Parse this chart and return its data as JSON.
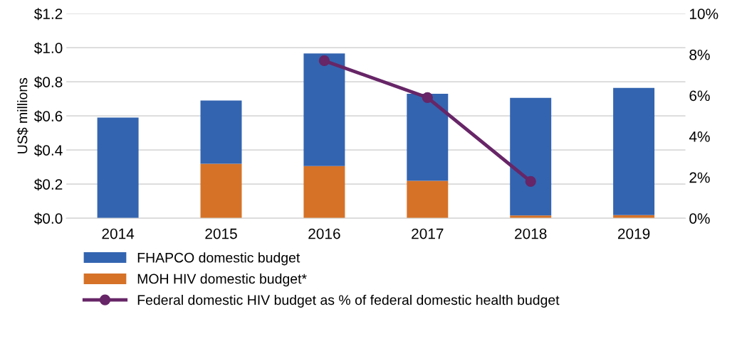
{
  "chart_data": {
    "type": "bar",
    "stacked": true,
    "ylabel": "US$ millions",
    "categories": [
      "2014",
      "2015",
      "2016",
      "2017",
      "2018",
      "2019"
    ],
    "series": [
      {
        "name": "MOH HIV domestic budget*",
        "color": "#d57228",
        "values": [
          0,
          0.32,
          0.306,
          0.22,
          0.016,
          0.019
        ]
      },
      {
        "name": "FHAPCO domestic budget",
        "color": "#3364b0",
        "values": [
          0.59,
          0.37,
          0.66,
          0.51,
          0.69,
          0.745
        ]
      },
      {
        "name": "Federal domestic HIV budget as % of federal domestic health budget",
        "type": "line",
        "axis": "y2",
        "color": "#672667",
        "marker": "circle",
        "values": [
          null,
          null,
          7.7,
          5.9,
          1.8,
          null
        ]
      }
    ],
    "ylim": [
      0,
      1.2
    ],
    "yticks": [
      {
        "value": 0,
        "label": "$0.0"
      },
      {
        "value": 0.2,
        "label": "$0.2"
      },
      {
        "value": 0.4,
        "label": "$0.4"
      },
      {
        "value": 0.6,
        "label": "$0.6"
      },
      {
        "value": 0.8,
        "label": "$0.8"
      },
      {
        "value": 1.0,
        "label": "$1.0"
      },
      {
        "value": 1.2,
        "label": "$1.2"
      }
    ],
    "y2lim": [
      0,
      10
    ],
    "y2ticks": [
      {
        "value": 0,
        "label": "0%"
      },
      {
        "value": 2,
        "label": "2%"
      },
      {
        "value": 4,
        "label": "4%"
      },
      {
        "value": 6,
        "label": "6%"
      },
      {
        "value": 8,
        "label": "8%"
      },
      {
        "value": 10,
        "label": "10%"
      }
    ],
    "grid": "y",
    "legend": "bottom"
  }
}
